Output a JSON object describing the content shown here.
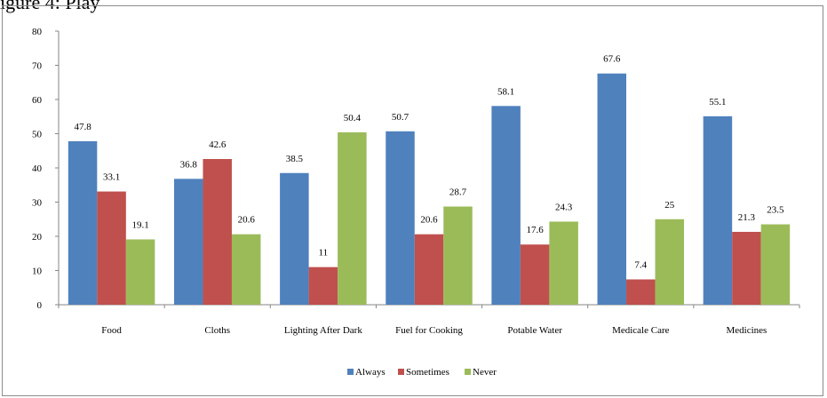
{
  "header_fragment": "igure 4: Play",
  "chart_data": {
    "type": "bar",
    "categories": [
      "Food",
      "Cloths",
      "Lighting After Dark",
      "Fuel for Cooking",
      "Potable Water",
      "Medicale Care",
      "Medicines"
    ],
    "series": [
      {
        "name": "Always",
        "color": "#4f81bd",
        "values": [
          47.8,
          36.8,
          38.5,
          50.7,
          58.1,
          67.6,
          55.1
        ]
      },
      {
        "name": "Sometimes",
        "color": "#c0504d",
        "values": [
          33.1,
          42.6,
          11,
          20.6,
          17.6,
          7.4,
          21.3
        ]
      },
      {
        "name": "Never",
        "color": "#9bbb59",
        "values": [
          19.1,
          20.6,
          50.4,
          28.7,
          24.3,
          25,
          23.5
        ]
      }
    ],
    "yticks": [
      0,
      10,
      20,
      30,
      40,
      50,
      60,
      70,
      80
    ],
    "ylim": [
      0,
      80
    ],
    "grid": false,
    "legend_position": "bottom"
  }
}
